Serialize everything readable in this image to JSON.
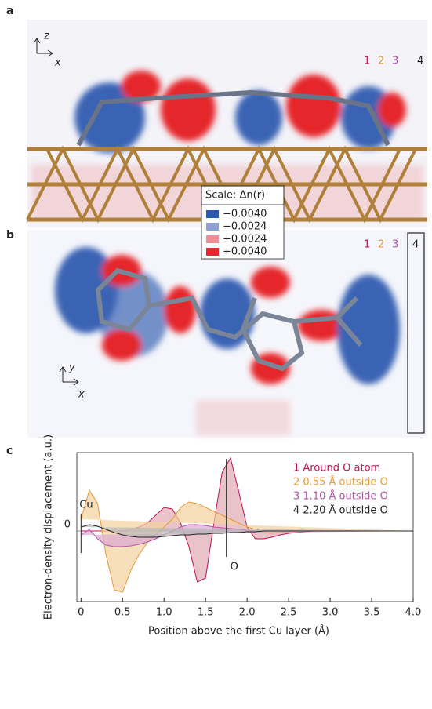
{
  "panels": {
    "a": {
      "label": "a",
      "axis_up": "z",
      "axis_right": "x",
      "probes": [
        "1",
        "2",
        "3",
        "4"
      ]
    },
    "b": {
      "label": "b",
      "axis_up": "y",
      "axis_right": "x",
      "probes": [
        "1",
        "2",
        "3",
        "4"
      ]
    }
  },
  "scale": {
    "title": "Scale: Δn(r)",
    "entries": [
      {
        "label": "−0.0040",
        "color": "#2a5cae"
      },
      {
        "label": "−0.0024",
        "color": "#8f9fcf"
      },
      {
        "label": "+0.0024",
        "color": "#ee8f93"
      },
      {
        "label": "+0.0040",
        "color": "#e8262d"
      }
    ]
  },
  "chart_data": {
    "type": "area",
    "panel_label": "c",
    "x_label": "Position above the first Cu layer (Å)",
    "y_label": "Electron-density displacement (a.u.)",
    "x": [
      0,
      0.1,
      0.2,
      0.3,
      0.4,
      0.5,
      0.6,
      0.7,
      0.8,
      0.9,
      1.0,
      1.1,
      1.2,
      1.3,
      1.4,
      1.5,
      1.6,
      1.7,
      1.8,
      1.9,
      2.0,
      2.1,
      2.2,
      2.3,
      2.4,
      2.5,
      2.6,
      2.7,
      2.8,
      2.9,
      3.0,
      3.1,
      3.2,
      3.3,
      3.4,
      3.5,
      3.6,
      3.7,
      3.8,
      3.9,
      4.0
    ],
    "series": [
      {
        "name": "1 Around O atom",
        "color": "#c0154c",
        "fill": "#e0a8b3",
        "values": [
          0,
          0,
          0,
          0,
          0,
          0,
          0.02,
          0.05,
          0.1,
          0.2,
          0.3,
          0.28,
          0.1,
          -0.2,
          -0.65,
          -0.6,
          0.1,
          0.75,
          0.93,
          0.5,
          0.05,
          -0.1,
          -0.1,
          -0.08,
          -0.05,
          -0.03,
          -0.02,
          -0.01,
          0,
          0,
          0,
          0,
          0,
          0,
          0,
          0,
          0,
          0,
          0,
          0,
          0
        ]
      },
      {
        "name": "2 0.55 Å outside O",
        "color": "#e49a3a",
        "fill": "#f4d1a0",
        "values": [
          0.15,
          0.52,
          0.35,
          -0.3,
          -0.75,
          -0.78,
          -0.5,
          -0.3,
          -0.15,
          -0.05,
          0.05,
          0.15,
          0.3,
          0.37,
          0.35,
          0.3,
          0.25,
          0.2,
          0.15,
          0.1,
          0.05,
          0.02,
          -0.02,
          -0.03,
          -0.02,
          -0.01,
          0,
          0,
          0,
          0,
          0,
          0,
          0,
          0,
          0,
          0,
          0,
          0,
          0,
          0,
          0
        ]
      },
      {
        "name": "3 1.10 Å outside O",
        "color": "#b654a8",
        "fill": "#dba6d2",
        "values": [
          -0.05,
          0.02,
          -0.1,
          -0.18,
          -0.2,
          -0.2,
          -0.19,
          -0.17,
          -0.14,
          -0.1,
          -0.05,
          0,
          0.05,
          0.08,
          0.08,
          0.07,
          0.05,
          0.04,
          0.03,
          0.02,
          0.01,
          0,
          0,
          0,
          0,
          0,
          0,
          0,
          0,
          0,
          0,
          0,
          0,
          0,
          0,
          0,
          0,
          0,
          0,
          0,
          0
        ]
      },
      {
        "name": "4 2.20 Å outside O",
        "color": "#222222",
        "fill": "#b8b8b8",
        "values": [
          0.05,
          0.08,
          0.06,
          0.02,
          -0.02,
          -0.05,
          -0.07,
          -0.08,
          -0.08,
          -0.08,
          -0.07,
          -0.06,
          -0.05,
          -0.05,
          -0.04,
          -0.04,
          -0.03,
          -0.03,
          -0.02,
          -0.02,
          -0.01,
          -0.01,
          0,
          0,
          0,
          0,
          0,
          0,
          0,
          0,
          0,
          0,
          0,
          0,
          0,
          0,
          0,
          0,
          0,
          0,
          0
        ]
      }
    ],
    "xlim": [
      -0.05,
      4.0
    ],
    "xticks": [
      0,
      0.5,
      {
        "value": 1,
        "label": "1.0"
      },
      1.5,
      {
        "value": 2,
        "label": "2.0"
      },
      2.5,
      {
        "value": 3,
        "label": "3.0"
      },
      3.5,
      {
        "value": 4,
        "label": "4.0"
      }
    ],
    "ylim": [
      -0.9,
      1.0
    ],
    "yticks": [
      0
    ],
    "annotations": [
      {
        "text": "Cu",
        "x": 0
      },
      {
        "text": "O",
        "x": 1.75
      }
    ]
  }
}
